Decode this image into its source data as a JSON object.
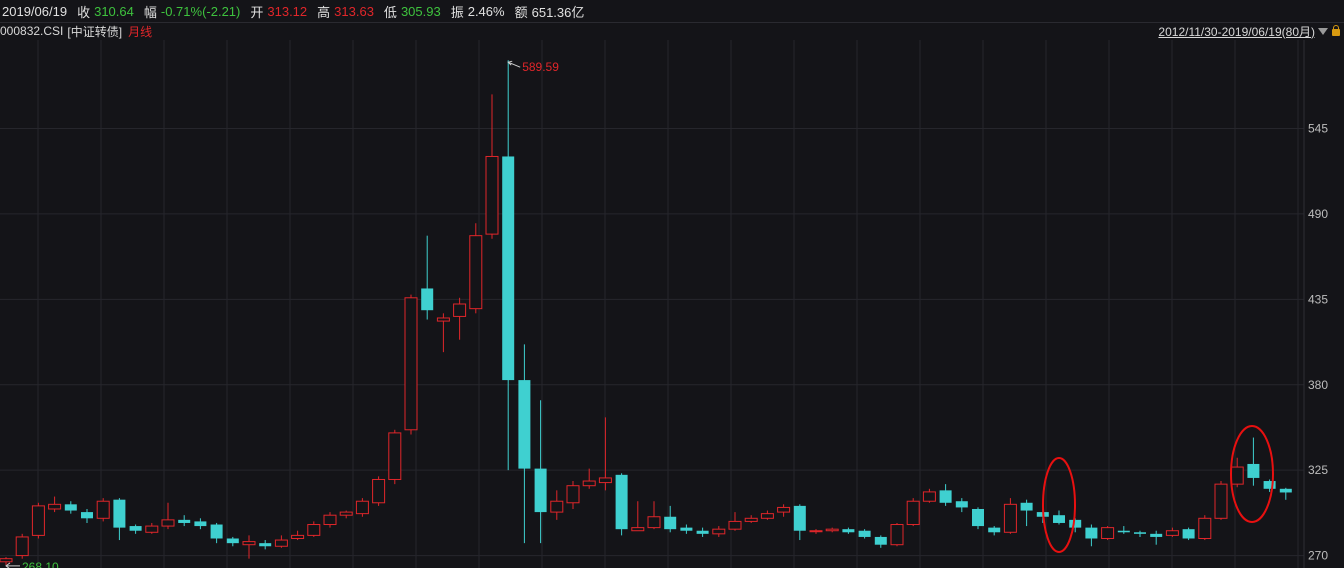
{
  "header": {
    "date": "2019/06/19",
    "close_label": "收",
    "close_value": "310.64",
    "change_label": "幅",
    "change_value": "-0.71%(-2.21)",
    "open_label": "开",
    "open_value": "313.12",
    "high_label": "高",
    "high_value": "313.63",
    "low_label": "低",
    "low_value": "305.93",
    "amplitude_label": "振",
    "amplitude_value": "2.46%",
    "amount_label": "额",
    "amount_value": "651.36亿"
  },
  "subheader": {
    "code": "000832.CSI",
    "name": "[中证转债]",
    "period": "月线"
  },
  "range": {
    "text": "2012/11/30-2019/06/19(80月)"
  },
  "colors": {
    "up": "#e0262a",
    "down": "#3fd0d0",
    "grid": "#26262c",
    "text_green": "#3ec23e",
    "text_red": "#e0262a",
    "annotation": "#e81010"
  },
  "chart_data": {
    "type": "candlestick",
    "ylim": [
      262,
      602
    ],
    "yticks": [
      "545",
      "490",
      "435",
      "380",
      "325",
      "270"
    ],
    "max_label": "589.59",
    "min_label": "268.10",
    "candles": [
      [
        266,
        268,
        264,
        269
      ],
      [
        270,
        282,
        268,
        284
      ],
      [
        283,
        302,
        281,
        304
      ],
      [
        300,
        303,
        298,
        308
      ],
      [
        303,
        299,
        297,
        305
      ],
      [
        298,
        294,
        291,
        300
      ],
      [
        294,
        305,
        292,
        307
      ],
      [
        306,
        288,
        280,
        307
      ],
      [
        289,
        286,
        284,
        290
      ],
      [
        285,
        289,
        284,
        291
      ],
      [
        289,
        293,
        287,
        304
      ],
      [
        293,
        291,
        289,
        296
      ],
      [
        292,
        289,
        287,
        294
      ],
      [
        290,
        281,
        278,
        291
      ],
      [
        281,
        278,
        276,
        282
      ],
      [
        277,
        279,
        268,
        283
      ],
      [
        278,
        276,
        274,
        280
      ],
      [
        276,
        280,
        275,
        283
      ],
      [
        281,
        283,
        280,
        286
      ],
      [
        283,
        290,
        282,
        292
      ],
      [
        290,
        296,
        288,
        298
      ],
      [
        296,
        298,
        294,
        299
      ],
      [
        297,
        305,
        295,
        307
      ],
      [
        304,
        319,
        302,
        321
      ],
      [
        319,
        349,
        316,
        351
      ],
      [
        351,
        436,
        348,
        438
      ],
      [
        442,
        428,
        422,
        476
      ],
      [
        421,
        423,
        401,
        426
      ],
      [
        424,
        432,
        409,
        436
      ],
      [
        429,
        476,
        426,
        484
      ],
      [
        477,
        527,
        474,
        567
      ],
      [
        527,
        383,
        325,
        589
      ],
      [
        383,
        326,
        278,
        406
      ],
      [
        326,
        298,
        278,
        370
      ],
      [
        298,
        305,
        293,
        312
      ],
      [
        304,
        315,
        300,
        318
      ],
      [
        315,
        318,
        313,
        326
      ],
      [
        317,
        320,
        312,
        359
      ],
      [
        322,
        287,
        283,
        323
      ],
      [
        286,
        288,
        286,
        305
      ],
      [
        288,
        295,
        287,
        305
      ],
      [
        295,
        287,
        285,
        302
      ],
      [
        288,
        286,
        284,
        290
      ],
      [
        286,
        284,
        282,
        288
      ],
      [
        284,
        287,
        282,
        289
      ],
      [
        287,
        292,
        286,
        298
      ],
      [
        292,
        294,
        291,
        296
      ],
      [
        294,
        297,
        293,
        299
      ],
      [
        298,
        301,
        295,
        303
      ],
      [
        302,
        286,
        280,
        303
      ],
      [
        286,
        286,
        284,
        287
      ],
      [
        286,
        287,
        285,
        288
      ],
      [
        287,
        285,
        284,
        288
      ],
      [
        286,
        282,
        281,
        287
      ],
      [
        282,
        277,
        275,
        283
      ],
      [
        277,
        290,
        276,
        291
      ],
      [
        290,
        305,
        289,
        307
      ],
      [
        305,
        311,
        304,
        313
      ],
      [
        312,
        304,
        302,
        316
      ],
      [
        305,
        301,
        298,
        307
      ],
      [
        300,
        289,
        287,
        301
      ],
      [
        288,
        285,
        283,
        289
      ],
      [
        285,
        303,
        284,
        307
      ],
      [
        304,
        299,
        289,
        306
      ],
      [
        298,
        295,
        291,
        300
      ],
      [
        296,
        291,
        290,
        299
      ],
      [
        293,
        288,
        285,
        294
      ],
      [
        288,
        281,
        276,
        290
      ],
      [
        281,
        288,
        280,
        289
      ],
      [
        286,
        285,
        284,
        289
      ],
      [
        285,
        284,
        282,
        286
      ],
      [
        284,
        282,
        277,
        286
      ],
      [
        283,
        286,
        282,
        288
      ],
      [
        287,
        281,
        280,
        288
      ],
      [
        281,
        294,
        280,
        296
      ],
      [
        294,
        316,
        293,
        318
      ],
      [
        316,
        327,
        314,
        333
      ],
      [
        329,
        320,
        315,
        346
      ],
      [
        318,
        313,
        311,
        319
      ],
      [
        313,
        310.64,
        305.93,
        313.63
      ]
    ]
  }
}
